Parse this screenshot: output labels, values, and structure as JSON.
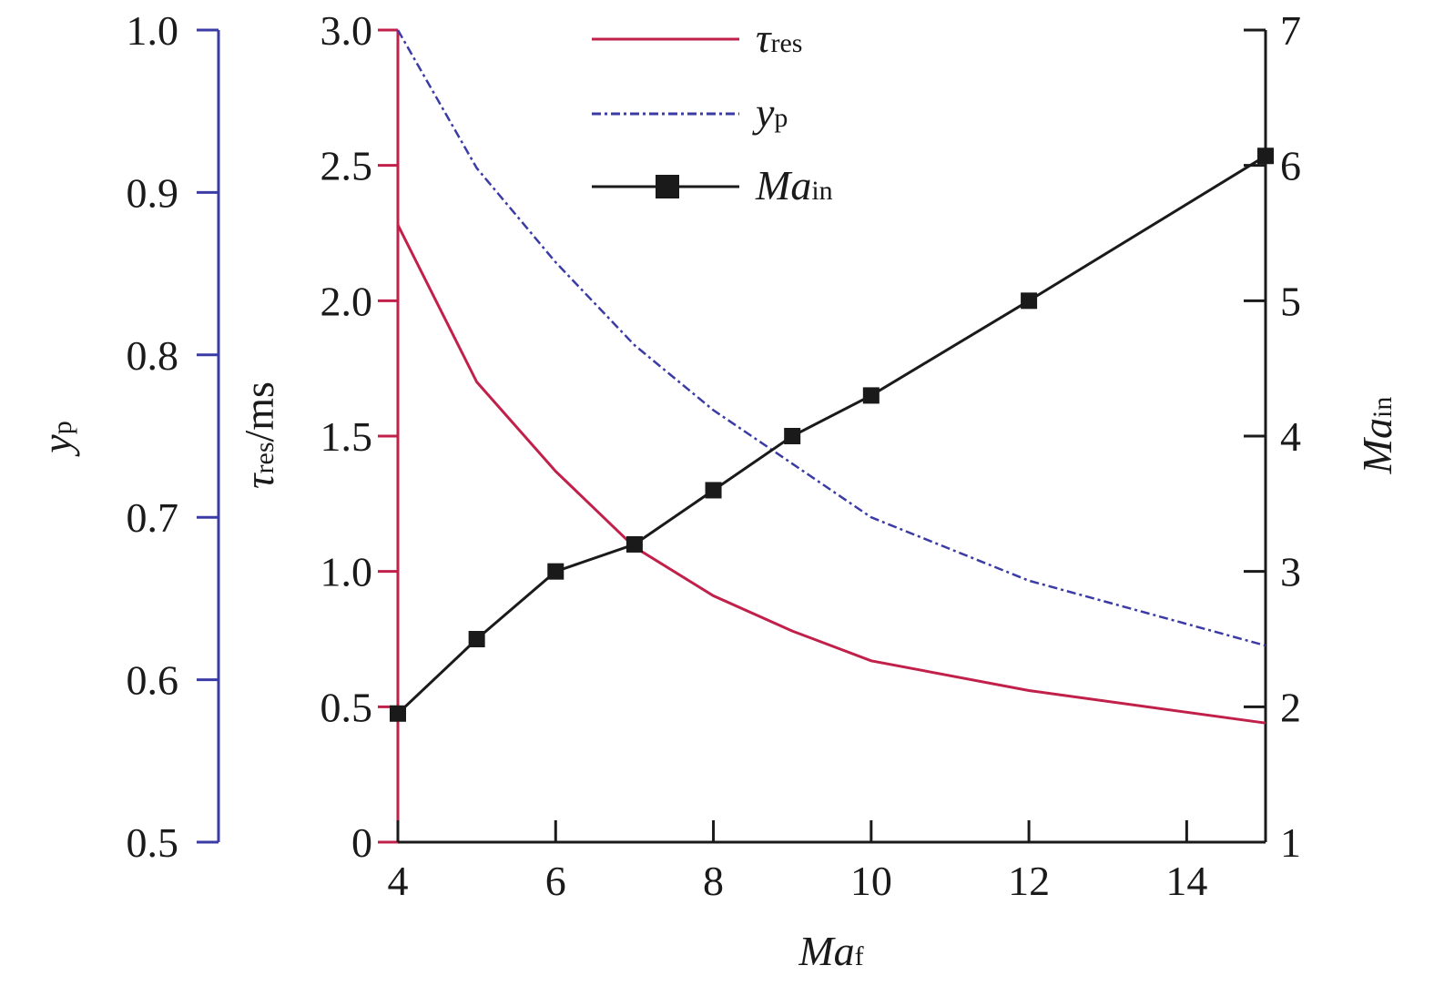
{
  "chart_data": {
    "type": "line",
    "x_label": {
      "main": "Ma",
      "sub": "f"
    },
    "x_ticks": [
      4,
      6,
      8,
      10,
      12,
      14
    ],
    "x_range": [
      4,
      15
    ],
    "axes": {
      "yp": {
        "label_main": "y",
        "label_sub": "p",
        "range": [
          0.5,
          1.0
        ],
        "ticks": [
          "0.5",
          "0.6",
          "0.7",
          "0.8",
          "0.9",
          "1.0"
        ],
        "color": "#3b3ba6"
      },
      "tau": {
        "label_main": "τ",
        "label_sub": "res",
        "label_tail": "/ms",
        "range": [
          0,
          3.0
        ],
        "ticks": [
          "0",
          "0.5",
          "1.0",
          "1.5",
          "2.0",
          "2.5",
          "3.0"
        ],
        "color": "#c0204a"
      },
      "main": {
        "label_main": "Ma",
        "label_sub": "in",
        "range": [
          1,
          7
        ],
        "ticks": [
          "1",
          "2",
          "3",
          "4",
          "5",
          "6",
          "7"
        ],
        "color": "#1a1a1a"
      }
    },
    "series": [
      {
        "name_main": "τ",
        "name_sub": "res",
        "axis": "tau",
        "color": "#c0204a",
        "style": "solid",
        "x": [
          4,
          5,
          6,
          7,
          8,
          9,
          10,
          12,
          15
        ],
        "y": [
          2.28,
          1.7,
          1.37,
          1.09,
          0.91,
          0.78,
          0.67,
          0.56,
          0.44
        ]
      },
      {
        "name_main": "y",
        "name_sub": "p",
        "axis": "yp",
        "color": "#3b3ba6",
        "style": "dashdot",
        "x": [
          4,
          5,
          6,
          7,
          8,
          9,
          10,
          12,
          15
        ],
        "y": [
          1.0,
          0.915,
          0.857,
          0.806,
          0.766,
          0.733,
          0.7,
          0.661,
          0.621
        ]
      },
      {
        "name_main": "Ma",
        "name_sub": "in",
        "axis": "main",
        "color": "#1a1a1a",
        "style": "solid-square",
        "x": [
          4,
          5,
          6,
          7,
          8,
          9,
          10,
          12,
          15
        ],
        "y": [
          1.95,
          2.5,
          3.0,
          3.2,
          3.6,
          4.0,
          4.3,
          5.0,
          6.07
        ]
      }
    ],
    "legend": "top-center",
    "grid": false
  }
}
